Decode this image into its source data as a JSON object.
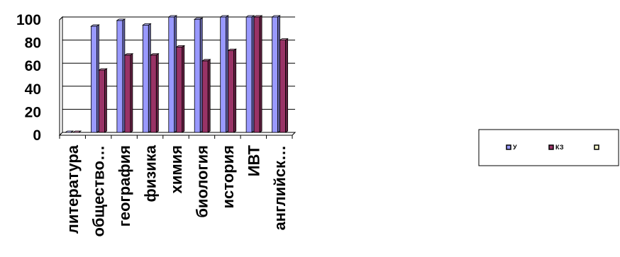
{
  "chart_data": {
    "type": "bar",
    "title": "",
    "xlabel": "",
    "ylabel": "",
    "ylim": [
      0,
      100
    ],
    "yticks": [
      "0",
      "20",
      "40",
      "60",
      "80",
      "100"
    ],
    "categories": [
      "литература",
      "обществo…",
      "география",
      "физика",
      "химия",
      "биология",
      "история",
      "ИВТ",
      "английск…"
    ],
    "series": [
      {
        "name": "У",
        "color": "#9999ff",
        "values": [
          0,
          92,
          97,
          93,
          100,
          98,
          100,
          100,
          100
        ]
      },
      {
        "name": "КЗ",
        "color": "#993366",
        "values": [
          0,
          54,
          67,
          67,
          74,
          62,
          71,
          100,
          80
        ]
      },
      {
        "name": "",
        "color": "#ffffcc",
        "values": [
          0,
          0,
          0,
          0,
          0,
          0,
          0,
          0,
          0
        ]
      }
    ],
    "legend_position": "right",
    "grid": true,
    "style": "3d-clustered-bar"
  }
}
